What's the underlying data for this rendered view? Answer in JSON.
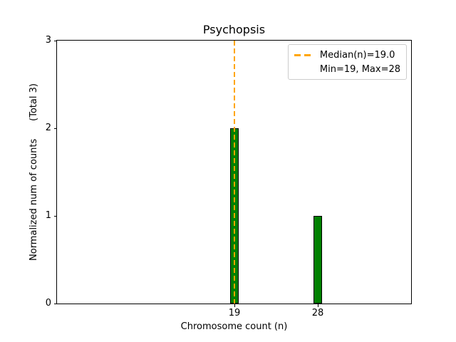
{
  "chart_data": {
    "type": "bar",
    "title": "Psychopsis",
    "xlabel": "Chromosome count (n)",
    "ylabel": "Normalized num of counts      (Total 3)",
    "categories": [
      19,
      28
    ],
    "values": [
      2,
      1
    ],
    "total": 3,
    "bar_color": "#008000",
    "bar_edge_color": "#000000",
    "bar_width_data_units": 0.9,
    "median": 19.0,
    "min": 19,
    "max": 28,
    "median_line_color": "#FFA500",
    "median_line_style": "dashed",
    "legend": {
      "position": "upper right",
      "items": [
        {
          "label": "Median(n)=19.0",
          "sample": "orange-dashed-line"
        },
        {
          "label": "Min=19, Max=28",
          "sample": "none"
        }
      ]
    },
    "xlim": [
      -0.2,
      38.1
    ],
    "ylim": [
      0,
      3
    ],
    "xticks": [
      19,
      28
    ],
    "yticks": [
      0,
      1,
      2,
      3
    ],
    "grid": false,
    "axis_color": "#000000",
    "background_color": "#ffffff"
  }
}
